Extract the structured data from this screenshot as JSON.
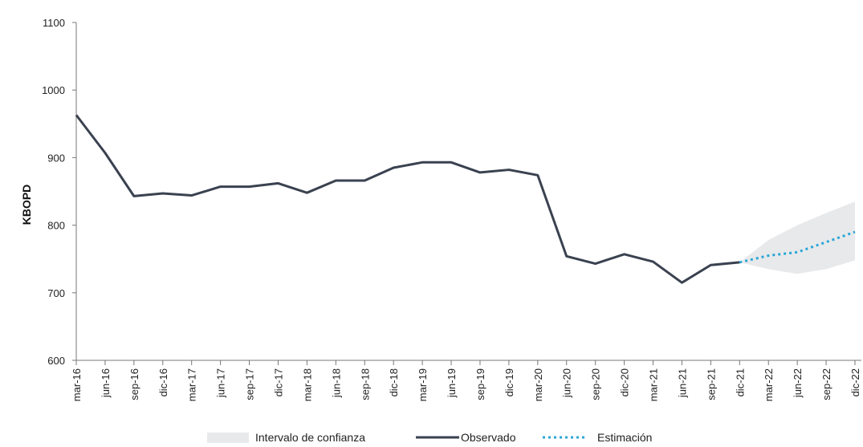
{
  "chart_data": {
    "type": "line",
    "title": "",
    "xlabel": "",
    "ylabel": "KBOPD",
    "ylim": [
      600,
      1100
    ],
    "yticks": [
      600,
      700,
      800,
      900,
      1000,
      1100
    ],
    "ytick_labels": [
      "600",
      "700",
      "800",
      "900",
      "1000",
      "1100"
    ],
    "categories": [
      "mar-16",
      "jun-16",
      "sep-16",
      "dic-16",
      "mar-17",
      "jun-17",
      "sep-17",
      "dic-17",
      "mar-18",
      "jun-18",
      "sep-18",
      "dic-18",
      "mar-19",
      "jun-19",
      "sep-19",
      "dic-19",
      "mar-20",
      "jun-20",
      "sep-20",
      "dic-20",
      "mar-21",
      "jun-21",
      "sep-21",
      "dic-21",
      "mar-22",
      "jun-22",
      "sep-22",
      "dic-22"
    ],
    "grid": false,
    "legend_position": "bottom",
    "series": [
      {
        "name": "Observado",
        "color": "#3a4250",
        "style": "solid",
        "values": [
          963,
          907,
          843,
          847,
          844,
          857,
          857,
          862,
          848,
          866,
          866,
          885,
          893,
          893,
          878,
          882,
          874,
          754,
          743,
          757,
          746,
          715,
          741,
          745,
          null,
          null,
          null,
          null
        ]
      },
      {
        "name": "Estimación",
        "color": "#2aa7d6",
        "style": "dotted",
        "values": [
          null,
          null,
          null,
          null,
          null,
          null,
          null,
          null,
          null,
          null,
          null,
          null,
          null,
          null,
          null,
          null,
          null,
          null,
          null,
          null,
          null,
          null,
          null,
          745,
          755,
          760,
          775,
          790
        ]
      }
    ],
    "confidence_interval": {
      "name": "Intervalo de confianza",
      "color": "#e8e9eb",
      "start_index": 23,
      "lower": [
        745,
        735,
        728,
        735,
        748
      ],
      "upper": [
        745,
        778,
        800,
        818,
        835
      ]
    }
  }
}
